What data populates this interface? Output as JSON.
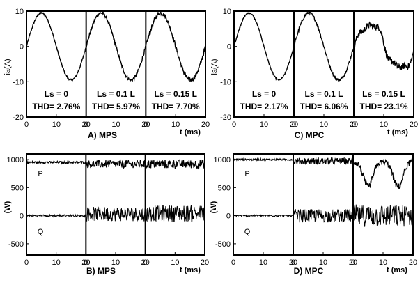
{
  "colors": {
    "axis": "#000000",
    "trace": "#000000",
    "background": "#ffffff"
  },
  "chart_data": [
    {
      "panel": "A",
      "caption": "A)  MPS",
      "type": "line",
      "ylabel": "ia(A)",
      "xlabel": "t (ms)",
      "ylim": [
        -20,
        10
      ],
      "yticks": [
        "10",
        "0",
        "-10",
        "-20"
      ],
      "ytick_values": [
        10,
        0,
        -10,
        -20
      ],
      "xticks": [
        "0",
        "10",
        "20",
        "0",
        "10",
        "20",
        "0",
        "10",
        "20"
      ],
      "segments": [
        {
          "label": "Ls = 0",
          "thd": "THD= 2.76%",
          "waveform": "sine",
          "amplitude": 9.5,
          "noise": 0.25,
          "distortion": 0
        },
        {
          "label": "Ls = 0.1 L",
          "thd": "THD= 5.97%",
          "waveform": "sine",
          "amplitude": 9.5,
          "noise": 0.45,
          "distortion": 0
        },
        {
          "label": "Ls = 0.15 L",
          "thd": "THD= 7.70%",
          "waveform": "sine",
          "amplitude": 9.5,
          "noise": 0.6,
          "distortion": 0
        }
      ]
    },
    {
      "panel": "C",
      "caption": "C)  MPC",
      "type": "line",
      "ylabel": "ia(A)",
      "xlabel": "t (ms)",
      "ylim": [
        -20,
        10
      ],
      "yticks": [
        "10",
        "0",
        "-10",
        "-20"
      ],
      "ytick_values": [
        10,
        0,
        -10,
        -20
      ],
      "xticks": [
        "0",
        "10",
        "20",
        "0",
        "10",
        "20",
        "0",
        "10",
        "20"
      ],
      "segments": [
        {
          "label": "Ls = 0",
          "thd": "THD= 2.17%",
          "waveform": "sine",
          "amplitude": 9.5,
          "noise": 0.2,
          "distortion": 0
        },
        {
          "label": "Ls = 0.1 L",
          "thd": "THD= 6.06%",
          "waveform": "sine",
          "amplitude": 9.5,
          "noise": 0.4,
          "distortion": 0
        },
        {
          "label": "Ls = 0.15 L",
          "thd": "THD= 23.1%",
          "waveform": "sine",
          "amplitude": 8.5,
          "noise": 0.9,
          "distortion": 1
        }
      ]
    },
    {
      "panel": "B",
      "caption": "B)  MPS",
      "type": "line",
      "ylabel": "(W)",
      "xlabel": "t (ms)",
      "ylim": [
        -700,
        1100
      ],
      "yticks": [
        "1000",
        "500",
        "0",
        "-500"
      ],
      "ytick_values": [
        1000,
        500,
        0,
        -500
      ],
      "xticks": [
        "0",
        "10",
        "20",
        "0",
        "10",
        "20",
        "0",
        "10",
        "20"
      ],
      "series_labels": [
        "P",
        "Q"
      ],
      "segments": [
        {
          "p_mean": 950,
          "p_noise": 20,
          "q_mean": 0,
          "q_noise": 20,
          "dip": 0
        },
        {
          "p_mean": 920,
          "p_noise": 70,
          "q_mean": 30,
          "q_noise": 130,
          "dip": 0
        },
        {
          "p_mean": 920,
          "p_noise": 80,
          "q_mean": 40,
          "q_noise": 150,
          "dip": 0
        }
      ]
    },
    {
      "panel": "D",
      "caption": "D)  MPC",
      "type": "line",
      "ylabel": "(W)",
      "xlabel": "t (ms)",
      "ylim": [
        -700,
        1100
      ],
      "yticks": [
        "1000",
        "500",
        "0",
        "-500"
      ],
      "ytick_values": [
        1000,
        500,
        0,
        -500
      ],
      "xticks": [
        "0",
        "10",
        "20",
        "0",
        "10",
        "20",
        "0",
        "10",
        "20"
      ],
      "series_labels": [
        "P",
        "Q"
      ],
      "segments": [
        {
          "p_mean": 1000,
          "p_noise": 15,
          "q_mean": 0,
          "q_noise": 15,
          "dip": 0
        },
        {
          "p_mean": 970,
          "p_noise": 60,
          "q_mean": 0,
          "q_noise": 120,
          "dip": 0
        },
        {
          "p_mean": 960,
          "p_noise": 60,
          "q_mean": 0,
          "q_noise": 200,
          "dip": 450
        }
      ]
    }
  ]
}
